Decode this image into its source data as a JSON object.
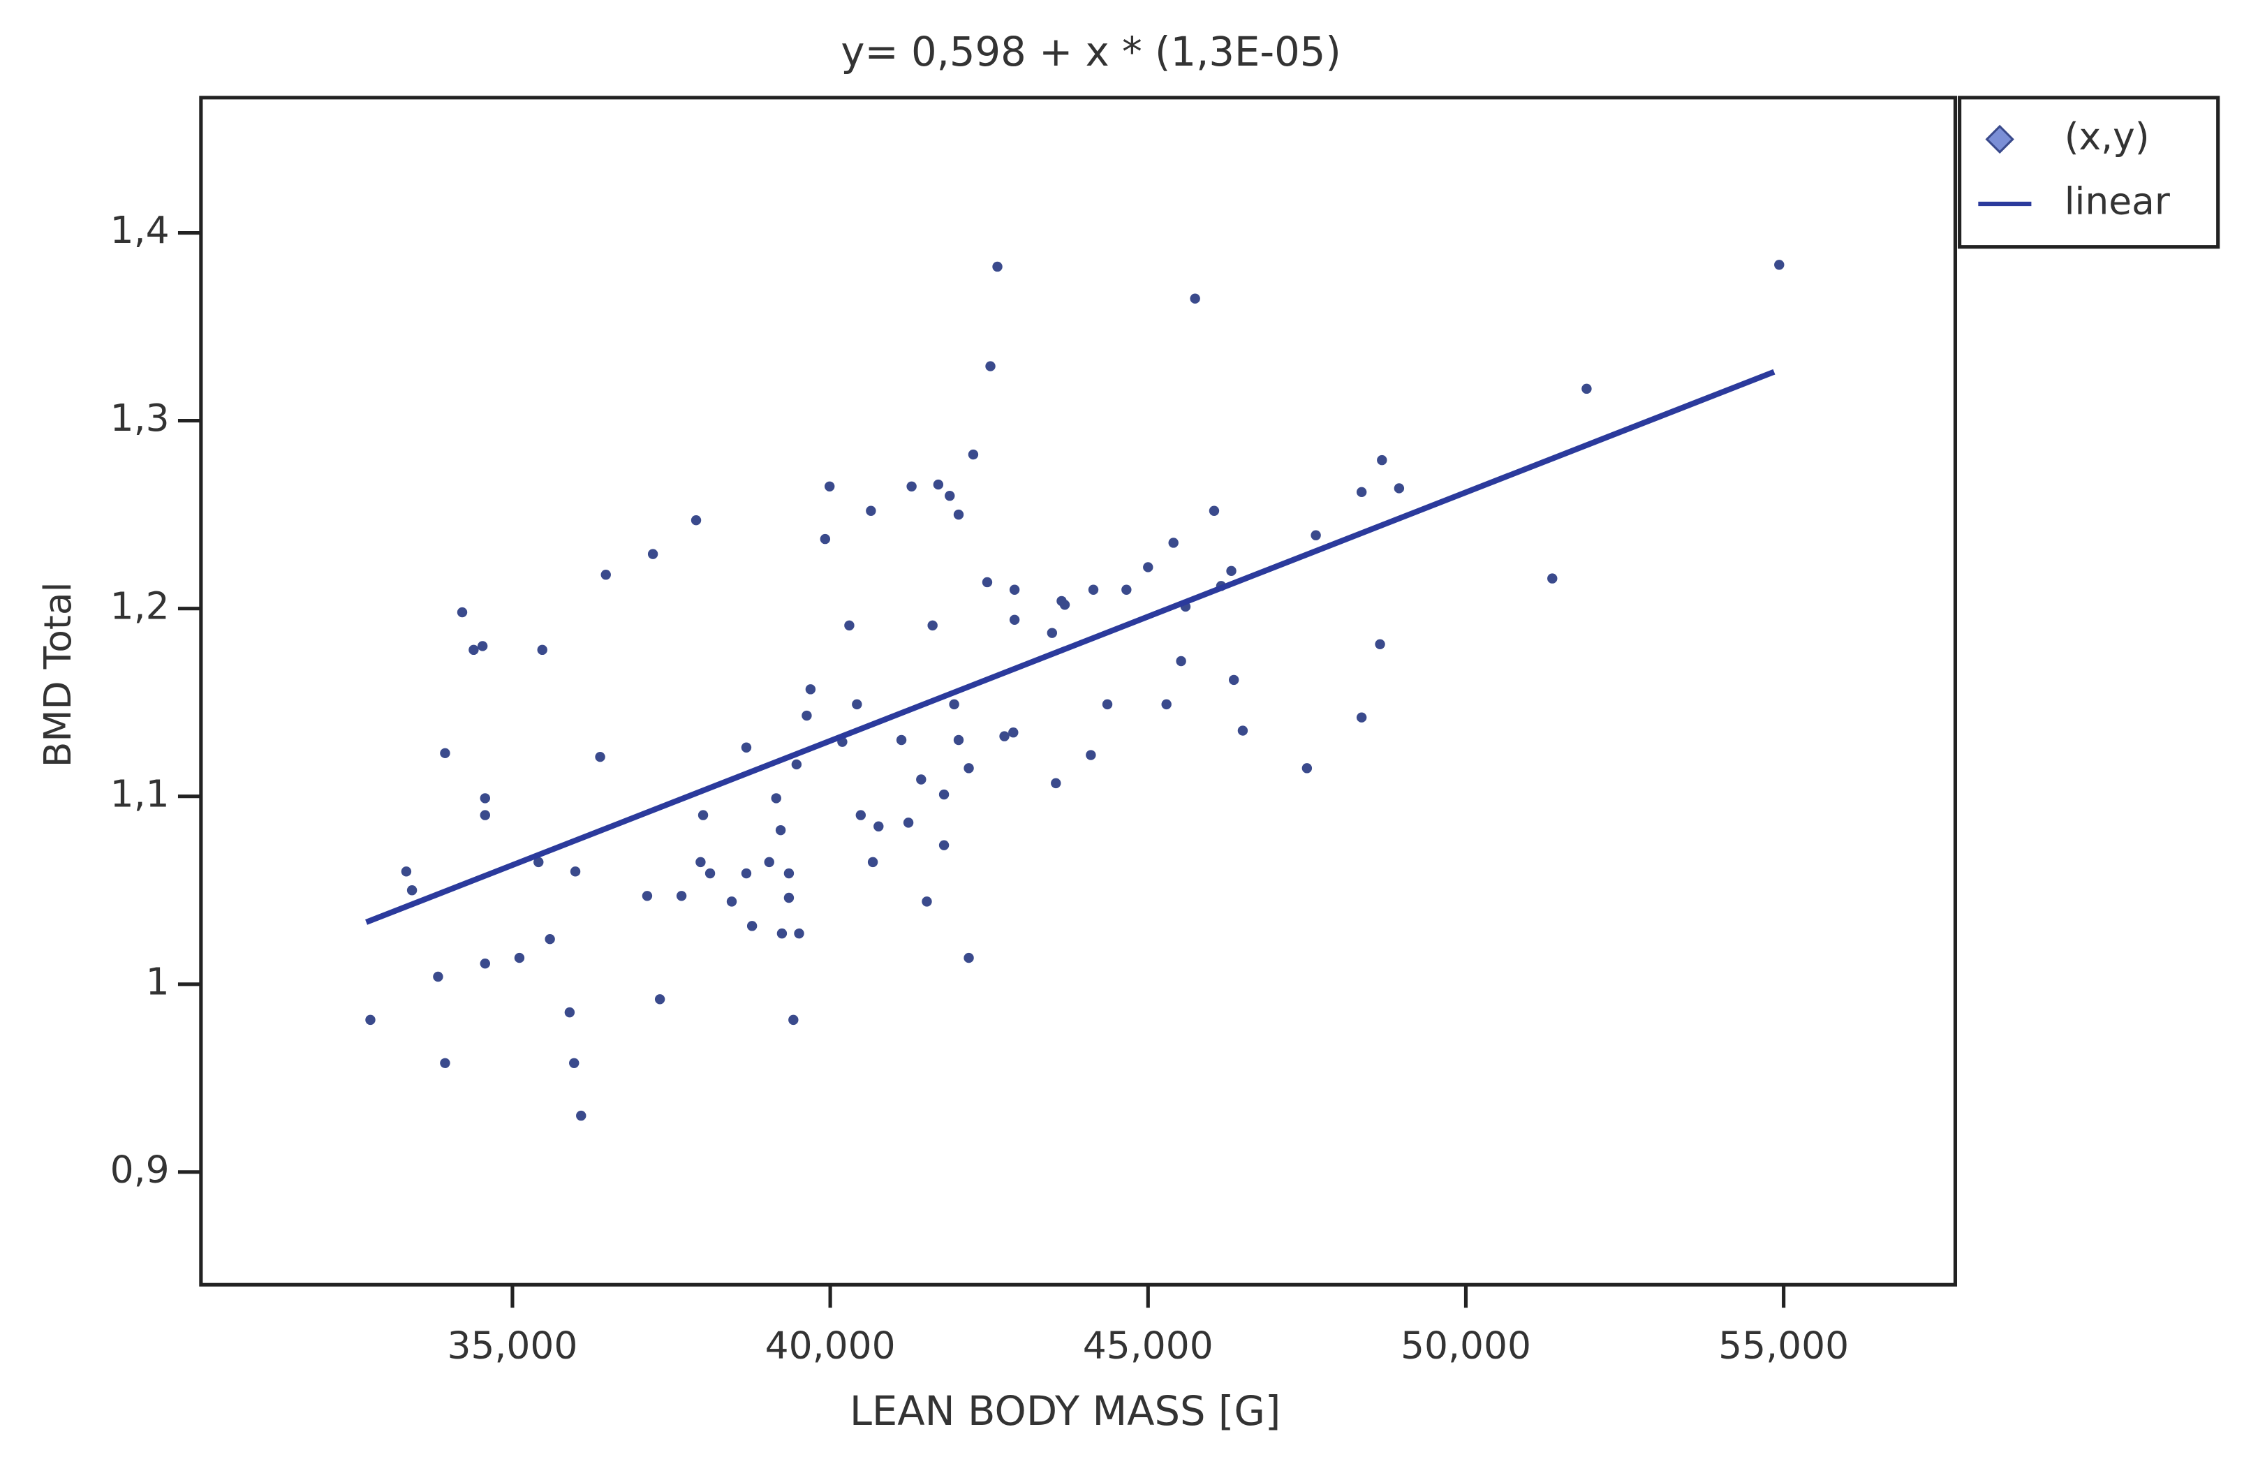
{
  "chart_data": {
    "type": "scatter",
    "title": "y= 0,598 + x * (1,3E-05)",
    "x_label": "LEAN BODY MASS [G]",
    "y_label": "BMD Total",
    "xlim": [
      30100,
      57700
    ],
    "ylim": [
      0.84,
      1.472
    ],
    "xticks": [
      {
        "value": 35000,
        "label": "35,000"
      },
      {
        "value": 40000,
        "label": "40,000"
      },
      {
        "value": 45000,
        "label": "45,000"
      },
      {
        "value": 50000,
        "label": "50,000"
      },
      {
        "value": 55000,
        "label": "55,000"
      }
    ],
    "yticks": [
      {
        "value": 0.9,
        "label": "0,9"
      },
      1,
      {
        "value": 1.1,
        "label": "1,1"
      },
      {
        "value": 1.2,
        "label": "1,2"
      },
      {
        "value": 1.3,
        "label": "1,3"
      },
      {
        "value": 1.4,
        "label": "1,4"
      }
    ],
    "grid": false,
    "series": [
      {
        "name": "(x,y)",
        "color": "#3a4a8c",
        "mode": "markers",
        "x": [
          32765,
          33330,
          33420,
          33830,
          33940,
          33940,
          34210,
          34390,
          34530,
          34570,
          34570,
          34570,
          35110,
          35410,
          35470,
          35590,
          35900,
          35970,
          35990,
          36080,
          36380,
          36470,
          37120,
          37210,
          37320,
          37660,
          37890,
          37960,
          38000,
          38110,
          38450,
          38680,
          38680,
          38770,
          39040,
          39150,
          39220,
          39240,
          39350,
          39350,
          39420,
          39470,
          39510,
          39630,
          39690,
          39920,
          39990,
          40190,
          40300,
          40420,
          40480,
          40640,
          40670,
          40760,
          41120,
          41230,
          41280,
          41430,
          41520,
          41610,
          41700,
          41790,
          41790,
          41880,
          41950,
          42020,
          42020,
          42180,
          42180,
          42250,
          42470,
          42520,
          42630,
          42740,
          42880,
          42900,
          42900,
          43490,
          43550,
          43640,
          43690,
          44100,
          44140,
          44360,
          44660,
          45000,
          45290,
          45400,
          45520,
          45590,
          45740,
          46040,
          46150,
          46310,
          46350,
          46490,
          47500,
          47640,
          48360,
          48360,
          48650,
          48680,
          48950,
          51360,
          51900,
          54930
        ],
        "values": [
          0.981,
          1.06,
          1.05,
          1.004,
          1.123,
          0.958,
          1.198,
          1.178,
          1.18,
          1.099,
          1.09,
          1.011,
          1.014,
          1.065,
          1.178,
          1.024,
          0.985,
          0.958,
          1.06,
          0.93,
          1.121,
          1.218,
          1.047,
          1.229,
          0.992,
          1.047,
          1.247,
          1.065,
          1.09,
          1.059,
          1.044,
          1.126,
          1.059,
          1.031,
          1.065,
          1.099,
          1.082,
          1.027,
          1.059,
          1.046,
          0.981,
          1.117,
          1.027,
          1.143,
          1.157,
          1.237,
          1.265,
          1.129,
          1.191,
          1.149,
          1.09,
          1.252,
          1.065,
          1.084,
          1.13,
          1.086,
          1.265,
          1.109,
          1.044,
          1.191,
          1.266,
          1.074,
          1.101,
          1.26,
          1.149,
          1.25,
          1.13,
          1.115,
          1.014,
          1.282,
          1.214,
          1.329,
          1.382,
          1.132,
          1.134,
          1.21,
          1.194,
          1.187,
          1.107,
          1.204,
          1.202,
          1.122,
          1.21,
          1.149,
          1.21,
          1.222,
          1.149,
          1.235,
          1.172,
          1.201,
          1.365,
          1.252,
          1.212,
          1.22,
          1.162,
          1.135,
          1.115,
          1.239,
          1.142,
          1.262,
          1.181,
          1.279,
          1.264,
          1.216,
          1.317,
          1.383
        ]
      },
      {
        "name": "linear",
        "color": "#2b3a9c",
        "mode": "line",
        "x": [
          32700,
          54850
        ],
        "values": [
          1.033,
          1.326
        ]
      }
    ]
  }
}
